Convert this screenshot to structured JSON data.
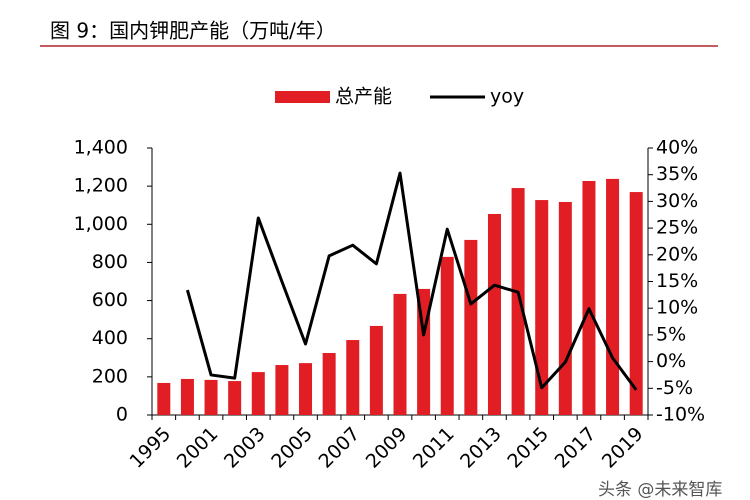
{
  "chart_data": {
    "type": "bar",
    "title": "图 9：国内钾肥产能（万吨/年）",
    "categories": [
      "1995",
      null,
      "2001",
      null,
      "2003",
      null,
      "2005",
      null,
      "2007",
      null,
      "2009",
      null,
      "2011",
      null,
      "2013",
      null,
      "2015",
      null,
      "2017",
      null,
      "2019"
    ],
    "series": [
      {
        "name": "总产能",
        "type": "bar",
        "color": "#e01e23",
        "values": [
          168,
          189,
          184,
          178,
          225,
          262,
          272,
          325,
          393,
          467,
          635,
          661,
          829,
          918,
          1054,
          1190,
          1127,
          1117,
          1227,
          1238,
          1169
        ]
      },
      {
        "name": "yoy",
        "type": "line",
        "axis": "y2",
        "color": "#000000",
        "values": [
          null,
          13.4,
          -2.5,
          -3.1,
          26.9,
          15,
          3.3,
          19.8,
          21.8,
          18.3,
          35.3,
          5,
          24.8,
          10.8,
          14.3,
          13,
          -4.9,
          -0.1,
          9.9,
          0.7,
          -5.3
        ]
      }
    ],
    "ylim": [
      0,
      1400
    ],
    "yticks": [
      0,
      200,
      400,
      600,
      800,
      {
        "value": 1000,
        "label": "1,000"
      },
      {
        "value": 1200,
        "label": "1,200"
      },
      {
        "value": 1400,
        "label": "1,400"
      }
    ],
    "y2lim": [
      -10,
      40
    ],
    "y2ticks": [
      {
        "value": -10,
        "label": "-10%"
      },
      {
        "value": -5,
        "label": "-5%"
      },
      {
        "value": 0,
        "label": "0%"
      },
      {
        "value": 5,
        "label": "5%"
      },
      {
        "value": 10,
        "label": "10%"
      },
      {
        "value": 15,
        "label": "15%"
      },
      {
        "value": 20,
        "label": "20%"
      },
      {
        "value": 25,
        "label": "25%"
      },
      {
        "value": 30,
        "label": "30%"
      },
      {
        "value": 35,
        "label": "35%"
      },
      {
        "value": 40,
        "label": "40%"
      }
    ],
    "grid": false,
    "legend": "top",
    "watermark": "头条 @未来智库"
  }
}
